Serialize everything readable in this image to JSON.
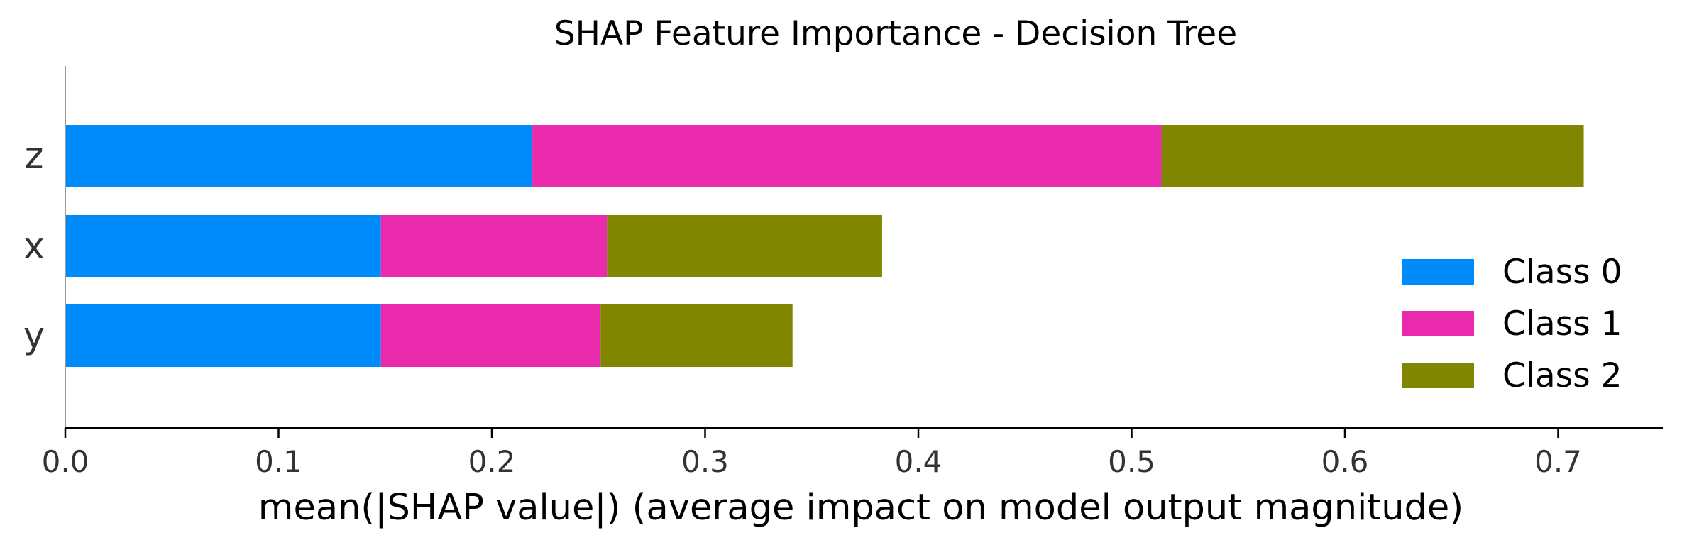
{
  "chart_data": {
    "type": "bar",
    "orientation": "horizontal",
    "stacked": true,
    "title": "SHAP Feature Importance - Decision Tree",
    "xlabel": "mean(|SHAP value|) (average impact on model output magnitude)",
    "ylabel": "",
    "categories": [
      "z",
      "x",
      "y"
    ],
    "series": [
      {
        "name": "Class 0",
        "color": "#008bfb",
        "values": [
          0.219,
          0.148,
          0.148
        ]
      },
      {
        "name": "Class 1",
        "color": "#e92aad",
        "values": [
          0.295,
          0.106,
          0.103
        ]
      },
      {
        "name": "Class 2",
        "color": "#808600",
        "values": [
          0.198,
          0.129,
          0.09
        ]
      }
    ],
    "xlim": [
      0,
      0.75
    ],
    "xticks": [
      "0.0",
      "0.1",
      "0.2",
      "0.3",
      "0.4",
      "0.5",
      "0.6",
      "0.7"
    ],
    "grid": false,
    "legend_position": "lower-right"
  }
}
